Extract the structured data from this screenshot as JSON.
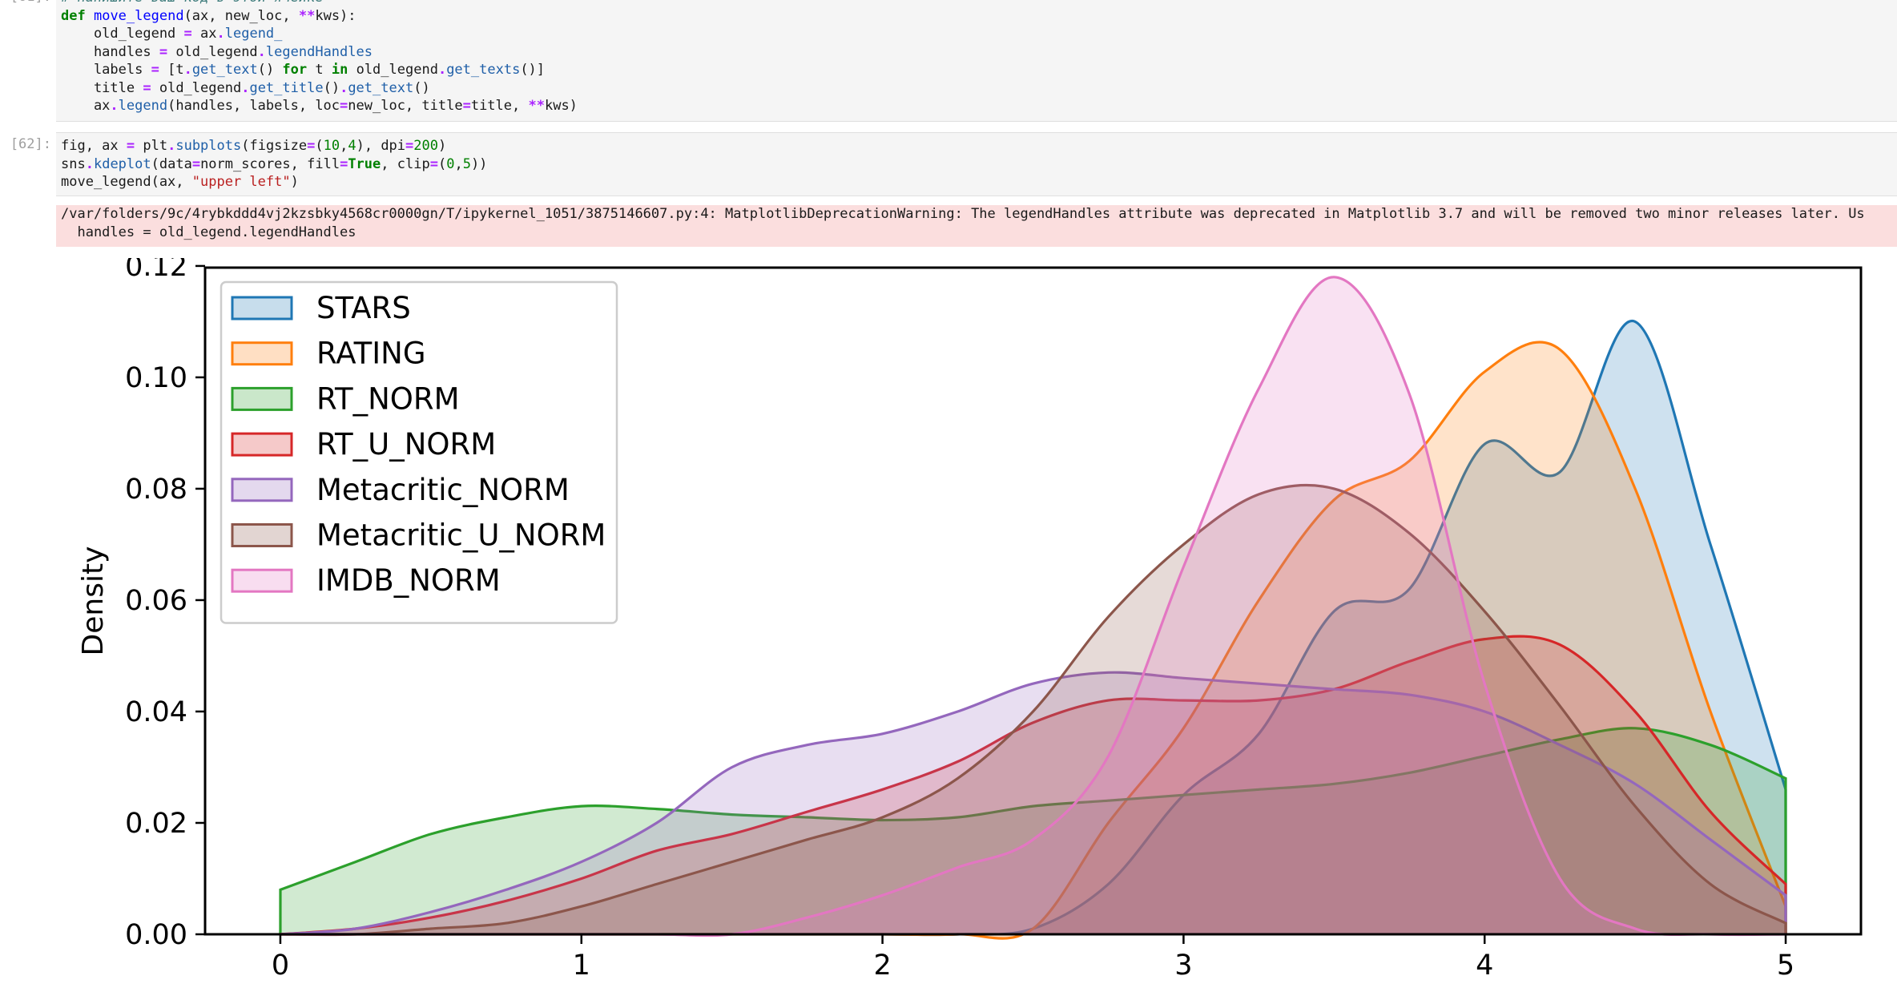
{
  "cell1": {
    "lines": [
      "# напишите ваш код в этой ячейке",
      "def move_legend(ax, new_loc, **kws):",
      "    old_legend = ax.legend_",
      "    handles = old_legend.legendHandles",
      "    labels = [t.get_text() for t in old_legend.get_texts()]",
      "    title = old_legend.get_title().get_text()",
      "    ax.legend(handles, labels, loc=new_loc, title=title, **kws)"
    ]
  },
  "cell2": {
    "prompt": "[62]:",
    "lines": [
      "fig, ax = plt.subplots(figsize=(10,4), dpi=200)",
      "sns.kdeplot(data=norm_scores, fill=True, clip=(0,5))",
      "move_legend(ax, \"upper left\")"
    ]
  },
  "warning": {
    "line1": "/var/folders/9c/4rybkddd4vj2kzsbky4568cr0000gn/T/ipykernel_1051/3875146607.py:4: MatplotlibDeprecationWarning: The legendHandles attribute was deprecated in Matplotlib 3.7 and will be removed two minor releases later. Us",
    "line2": "  handles = old_legend.legendHandles"
  },
  "chart_data": {
    "type": "area",
    "xlabel": "",
    "ylabel": "Density",
    "xlim": [
      -0.25,
      5.25
    ],
    "ylim": [
      0,
      0.1197
    ],
    "xticks": [
      "0",
      "1",
      "2",
      "3",
      "4",
      "5"
    ],
    "yticks": [
      "0.00",
      "0.02",
      "0.04",
      "0.06",
      "0.08",
      "0.10",
      "0.12"
    ],
    "legend_position": "upper-left",
    "grid": false,
    "x": [
      0,
      0.25,
      0.5,
      0.75,
      1,
      1.25,
      1.5,
      1.75,
      2,
      2.25,
      2.5,
      2.75,
      3,
      3.25,
      3.5,
      3.75,
      4,
      4.25,
      4.5,
      4.75,
      5
    ],
    "series": [
      {
        "name": "STARS",
        "color": "#1f77b4",
        "values": [
          0,
          0,
          0,
          0,
          0,
          0,
          0,
          0,
          0,
          0,
          0.001,
          0.009,
          0.025,
          0.036,
          0.058,
          0.062,
          0.088,
          0.083,
          0.11,
          0.07,
          0.026
        ]
      },
      {
        "name": "RATING",
        "color": "#ff7f0e",
        "values": [
          0,
          0,
          0,
          0,
          0,
          0,
          0,
          0,
          0,
          0,
          0.001,
          0.02,
          0.037,
          0.06,
          0.078,
          0.085,
          0.101,
          0.105,
          0.08,
          0.04,
          0.005
        ]
      },
      {
        "name": "RT_NORM",
        "color": "#2ca02c",
        "values": [
          0.008,
          0.013,
          0.018,
          0.021,
          0.023,
          0.0225,
          0.0215,
          0.021,
          0.0205,
          0.021,
          0.023,
          0.024,
          0.025,
          0.026,
          0.027,
          0.029,
          0.032,
          0.035,
          0.037,
          0.034,
          0.028
        ]
      },
      {
        "name": "RT_U_NORM",
        "color": "#d62728",
        "values": [
          0,
          0.001,
          0.003,
          0.006,
          0.01,
          0.015,
          0.018,
          0.022,
          0.026,
          0.031,
          0.038,
          0.042,
          0.042,
          0.042,
          0.044,
          0.049,
          0.053,
          0.052,
          0.04,
          0.022,
          0.009
        ]
      },
      {
        "name": "Metacritic_NORM",
        "color": "#9467bd",
        "values": [
          0,
          0.001,
          0.004,
          0.008,
          0.013,
          0.02,
          0.03,
          0.034,
          0.036,
          0.04,
          0.045,
          0.047,
          0.046,
          0.045,
          0.044,
          0.043,
          0.04,
          0.034,
          0.027,
          0.017,
          0.007
        ]
      },
      {
        "name": "Metacritic_U_NORM",
        "color": "#8c564b",
        "values": [
          0,
          0,
          0.001,
          0.002,
          0.005,
          0.009,
          0.013,
          0.017,
          0.021,
          0.028,
          0.04,
          0.057,
          0.07,
          0.079,
          0.08,
          0.072,
          0.058,
          0.041,
          0.023,
          0.009,
          0.002
        ]
      },
      {
        "name": "IMDB_NORM",
        "color": "#e377c2",
        "values": [
          0,
          0,
          0,
          0,
          0,
          0,
          0,
          0.003,
          0.007,
          0.012,
          0.017,
          0.032,
          0.066,
          0.098,
          0.118,
          0.097,
          0.045,
          0.01,
          0.001,
          0,
          0
        ]
      }
    ]
  }
}
